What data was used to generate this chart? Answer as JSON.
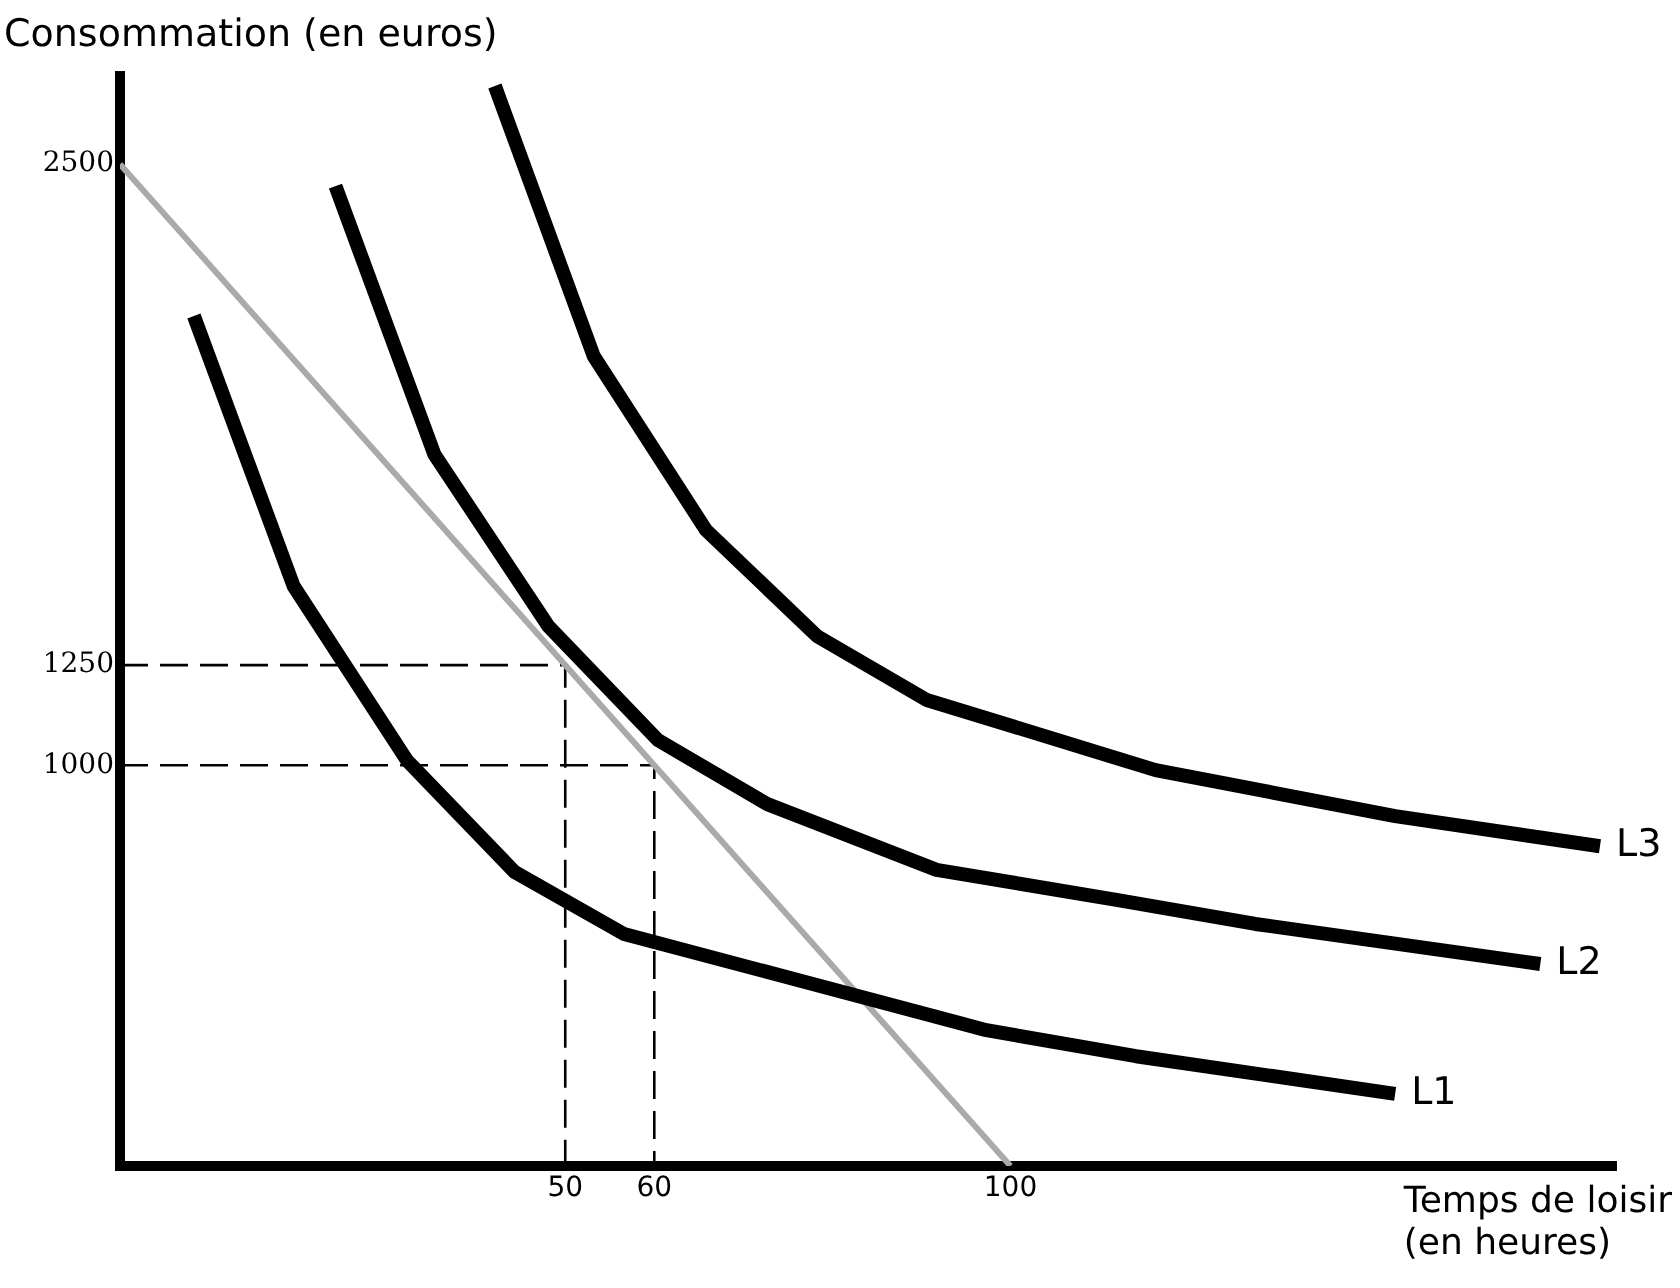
{
  "chart_data": {
    "type": "line",
    "xlabel": "Temps de loisir\n(en heures)",
    "ylabel": "Consommation (en euros)",
    "xlim": [
      0,
      168
    ],
    "ylim": [
      0,
      2720
    ],
    "xticks": [
      50,
      60,
      100
    ],
    "yticks": [
      1000,
      1250,
      2500
    ],
    "grid": false,
    "legend": false,
    "marker": "none",
    "series": [
      {
        "name": "L1",
        "color": "#000000",
        "x": [
          8.3,
          19.5,
          32.2,
          44.3,
          56.6,
          76.1,
          97.3,
          114.1,
          143.2
        ],
        "values": [
          2121,
          1447,
          1013,
          734,
          579,
          464,
          339,
          274,
          180
        ]
      },
      {
        "name": "L2",
        "color": "#000000",
        "x": [
          24.2,
          35.3,
          48.1,
          60.4,
          72.7,
          91.7,
          111.9,
          127.5,
          159.5
        ],
        "values": [
          2445,
          1776,
          1347,
          1063,
          903,
          739,
          664,
          604,
          504
        ]
      },
      {
        "name": "L3",
        "color": "#000000",
        "x": [
          42.1,
          53.2,
          65.8,
          78.3,
          90.6,
          116.3,
          143.2,
          166.2
        ],
        "values": [
          2695,
          2021,
          1587,
          1322,
          1163,
          988,
          873,
          798
        ]
      },
      {
        "color": "#aaaaaa",
        "x": [
          0,
          100
        ],
        "values": [
          2500,
          0
        ]
      },
      {
        "color": "#000000",
        "line_style": "dashed",
        "x": [
          0,
          50,
          50
        ],
        "values": [
          1250,
          1250,
          0
        ]
      },
      {
        "color": "#000000",
        "line_style": "dashed",
        "x": [
          0,
          60,
          60
        ],
        "values": [
          1000,
          1000,
          0
        ]
      }
    ]
  }
}
